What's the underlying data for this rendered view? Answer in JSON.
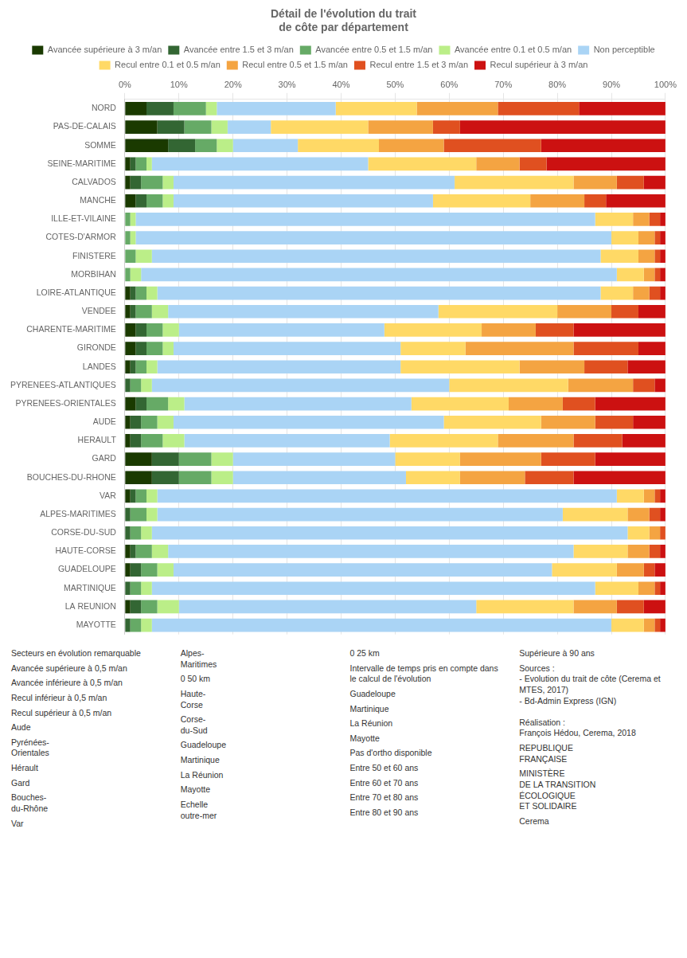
{
  "chart_data": {
    "type": "bar",
    "orientation": "horizontal",
    "stacked": true,
    "title": "Détail de l'évolution du trait\nde côte par département",
    "categories": [
      "NORD",
      "PAS-DE-CALAIS",
      "SOMME",
      "SEINE-MARITIME",
      "CALVADOS",
      "MANCHE",
      "ILLE-ET-VILAINE",
      "COTES-D'ARMOR",
      "FINISTERE",
      "MORBIHAN",
      "LOIRE-ATLANTIQUE",
      "VENDEE",
      "CHARENTE-MARITIME",
      "GIRONDE",
      "LANDES",
      "PYRENEES-ATLANTIQUES",
      "PYRENEES-ORIENTALES",
      "AUDE",
      "HERAULT",
      "GARD",
      "BOUCHES-DU-RHONE",
      "VAR",
      "ALPES-MARITIMES",
      "CORSE-DU-SUD",
      "HAUTE-CORSE",
      "GUADELOUPE",
      "MARTINIQUE",
      "LA REUNION",
      "MAYOTTE"
    ],
    "series": [
      {
        "name": "Avancée supérieure à 3 m/an",
        "color": "#1a3a00",
        "values": [
          4,
          6,
          8,
          1,
          1,
          2,
          0,
          0,
          0,
          0,
          1,
          1,
          2,
          2,
          1,
          0,
          2,
          1,
          1,
          5,
          5,
          1,
          0,
          0,
          1,
          1,
          0,
          1,
          0
        ]
      },
      {
        "name": "Avancée entre 1.5 et 3 m/an",
        "color": "#336633",
        "values": [
          5,
          5,
          5,
          1,
          2,
          2,
          0,
          0,
          0,
          0,
          1,
          1,
          2,
          2,
          1,
          1,
          2,
          2,
          2,
          5,
          5,
          1,
          1,
          1,
          1,
          2,
          1,
          2,
          1
        ]
      },
      {
        "name": "Avancée entre 0.5 et 1.5 m/an",
        "color": "#66aa66",
        "values": [
          6,
          5,
          4,
          2,
          4,
          3,
          1,
          1,
          2,
          1,
          2,
          3,
          3,
          3,
          2,
          2,
          4,
          3,
          4,
          6,
          6,
          2,
          3,
          2,
          3,
          3,
          2,
          3,
          2
        ]
      },
      {
        "name": "Avancée entre 0.1 et 0.5 m/an",
        "color": "#bbee88",
        "values": [
          2,
          3,
          3,
          1,
          2,
          2,
          1,
          1,
          3,
          2,
          2,
          3,
          3,
          2,
          2,
          2,
          3,
          3,
          4,
          4,
          4,
          2,
          2,
          2,
          3,
          3,
          2,
          4,
          2
        ]
      },
      {
        "name": "Non perceptible",
        "color": "#aad4f5",
        "values": [
          22,
          8,
          12,
          40,
          52,
          48,
          85,
          88,
          83,
          88,
          82,
          50,
          38,
          42,
          45,
          55,
          42,
          50,
          38,
          30,
          32,
          85,
          75,
          88,
          75,
          70,
          82,
          55,
          85
        ]
      },
      {
        "name": "Recul entre 0.1 et 0.5 m/an",
        "color": "#ffd966",
        "values": [
          15,
          18,
          15,
          20,
          22,
          18,
          7,
          5,
          7,
          5,
          6,
          22,
          18,
          12,
          22,
          22,
          18,
          18,
          20,
          12,
          10,
          5,
          12,
          4,
          10,
          12,
          8,
          18,
          6
        ]
      },
      {
        "name": "Recul entre 0.5 et 1.5 m/an",
        "color": "#f4a442",
        "values": [
          15,
          12,
          12,
          8,
          8,
          10,
          3,
          3,
          3,
          2,
          3,
          10,
          10,
          20,
          12,
          12,
          10,
          10,
          14,
          15,
          12,
          2,
          4,
          2,
          4,
          5,
          3,
          8,
          2
        ]
      },
      {
        "name": "Recul entre 1.5 et 3 m/an",
        "color": "#e05020",
        "values": [
          15,
          5,
          18,
          5,
          5,
          4,
          2,
          1,
          1,
          1,
          2,
          5,
          7,
          12,
          8,
          4,
          6,
          7,
          9,
          10,
          9,
          1,
          2,
          1,
          2,
          2,
          1,
          5,
          1
        ]
      },
      {
        "name": "Recul supérieur à 3 m/an",
        "color": "#cc1111",
        "values": [
          16,
          38,
          23,
          22,
          4,
          11,
          1,
          1,
          1,
          1,
          1,
          5,
          17,
          5,
          7,
          2,
          13,
          6,
          8,
          13,
          17,
          1,
          1,
          0,
          1,
          2,
          1,
          4,
          1
        ]
      }
    ],
    "xlim": [
      0,
      100
    ],
    "xticks": [
      {
        "value": 0,
        "label": "0%"
      },
      {
        "value": 10,
        "label": "10%"
      },
      {
        "value": 20,
        "label": "20%"
      },
      {
        "value": 30,
        "label": "30%"
      },
      {
        "value": 40,
        "label": "40%"
      },
      {
        "value": 50,
        "label": "50%"
      },
      {
        "value": 60,
        "label": "60%"
      },
      {
        "value": 70,
        "label": "70%"
      },
      {
        "value": 80,
        "label": "80%"
      },
      {
        "value": 90,
        "label": "90%"
      },
      {
        "value": 100,
        "label": "100%"
      }
    ],
    "grid": true,
    "legend": "top",
    "annotations": [
      "Secteurs en évolution remarquable",
      "Avancée supérieure à 0,5 m/an",
      "Avancée inférieure à 0,5 m/an",
      "Recul inférieur à 0,5 m/an",
      "Recul supérieur à 0,5 m/an",
      "Aude",
      "Pyrénées-\nOrientales",
      "Hérault",
      "Gard",
      "Bouches-\ndu-Rhône",
      "Var",
      "Alpes-\nMaritimes",
      "0    50 km",
      "Haute-\nCorse",
      "Corse-\ndu-Sud",
      "Guadeloupe",
      "Martinique",
      "La Réunion",
      "Mayotte",
      "Echelle\noutre-mer",
      "0        25 km",
      "Intervalle de temps pris en compte dans le calcul de l'évolution",
      "Guadeloupe",
      "Martinique",
      "La Réunion",
      "Mayotte",
      "Pas d'ortho disponible",
      "Entre 50 et 60 ans",
      "Entre 60 et 70 ans",
      "Entre 70 et 80 ans",
      "Entre 80 et 90 ans",
      "Supérieure à 90 ans",
      "Sources :\n- Evolution du trait de côte (Cerema et\nMTES, 2017)\n- Bd-Admin Express (IGN)\n\nRéalisation :\nFrançois Hédou, Cerema, 2018",
      "REPUBLIQUE\nFRANÇAISE",
      "MINISTÈRE\nDE LA TRANSITION\nÉCOLOGIQUE\nET SOLIDAIRE",
      "Cerema"
    ]
  }
}
